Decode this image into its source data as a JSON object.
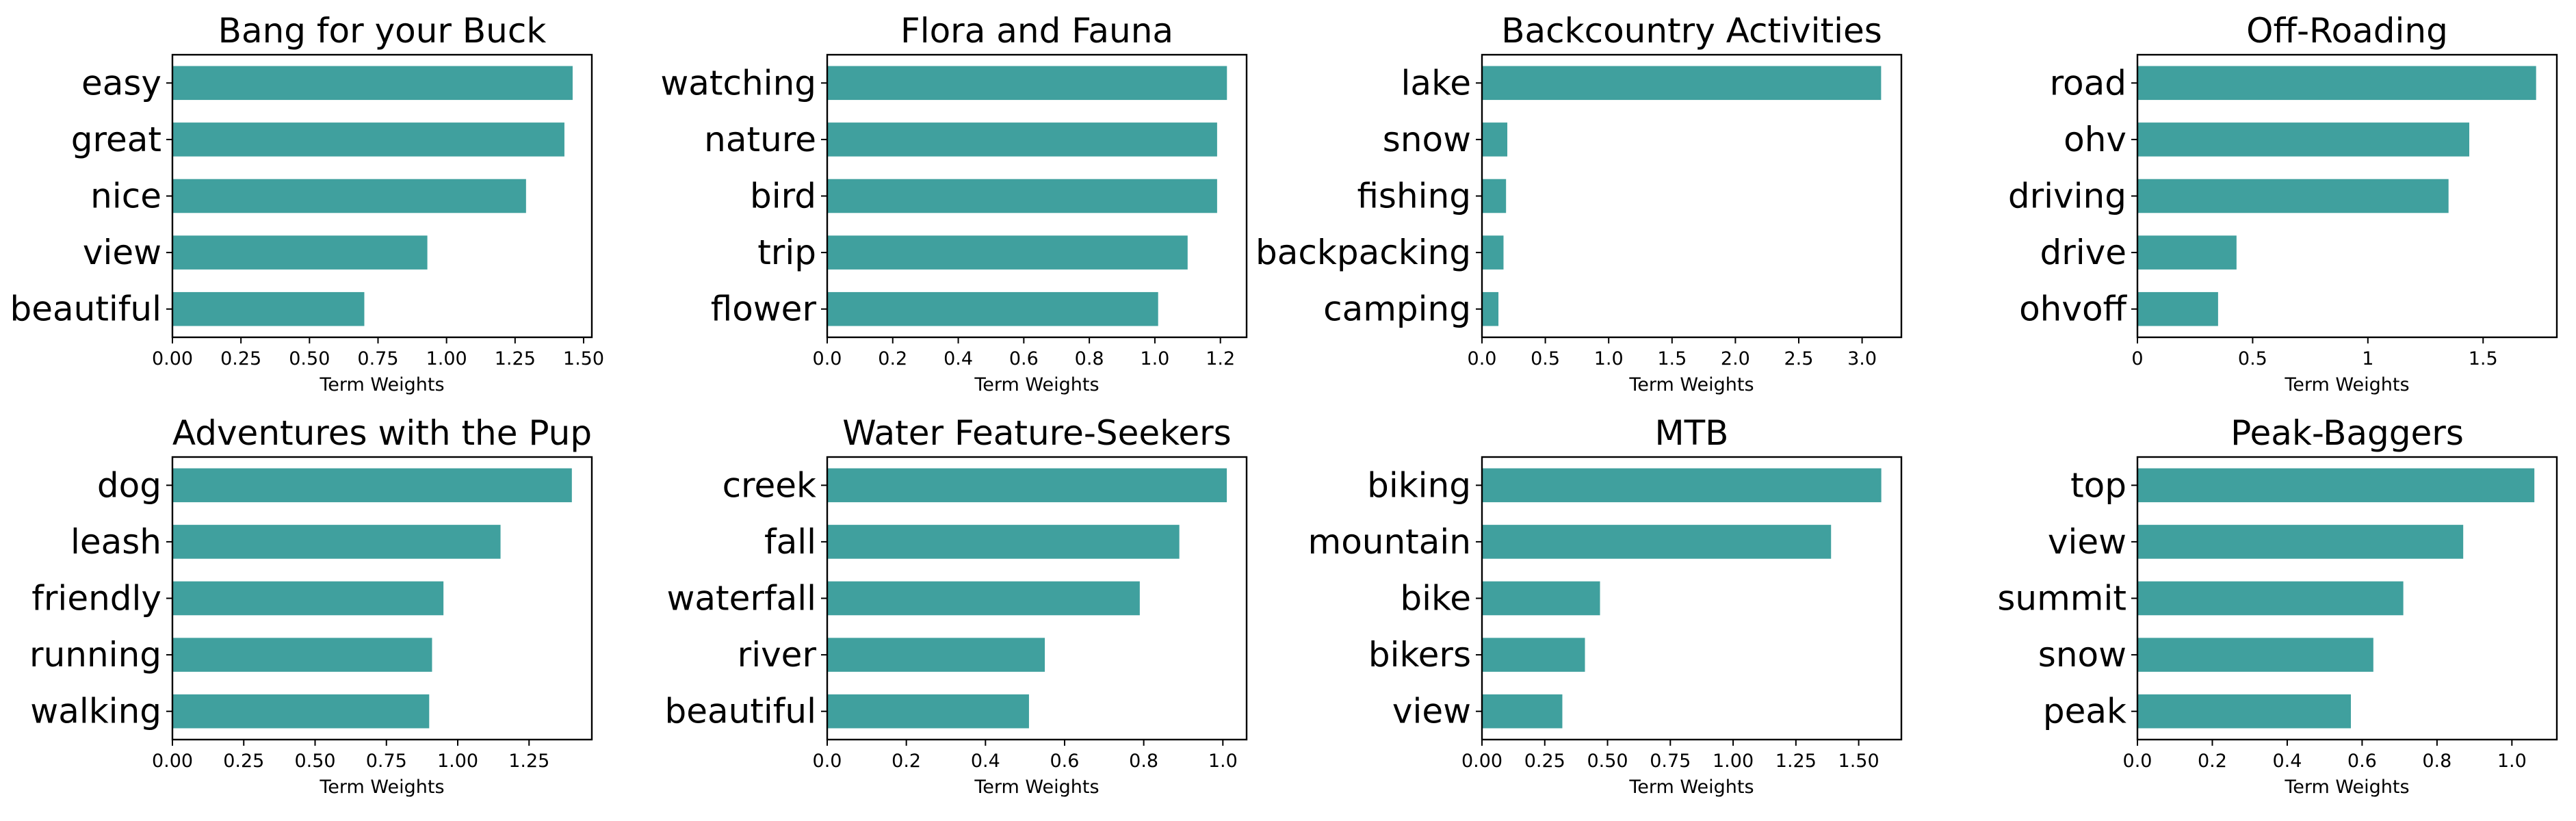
{
  "chart_data": [
    {
      "type": "bar",
      "orientation": "horizontal",
      "title": "Bang for your Buck",
      "categories": [
        "easy",
        "great",
        "nice",
        "view",
        "beautiful"
      ],
      "values": [
        1.46,
        1.43,
        1.29,
        0.93,
        0.7
      ],
      "xlabel": "Term Weights",
      "xlim": [
        0,
        1.53
      ],
      "xticks": [
        0.0,
        0.25,
        0.5,
        0.75,
        1.0,
        1.25,
        1.5
      ],
      "xtick_labels": [
        "0.00",
        "0.25",
        "0.50",
        "0.75",
        "1.00",
        "1.25",
        "1.50"
      ],
      "color": "#40a09e"
    },
    {
      "type": "bar",
      "orientation": "horizontal",
      "title": "Flora and Fauna",
      "categories": [
        "watching",
        "nature",
        "bird",
        "trip",
        "flower"
      ],
      "values": [
        1.22,
        1.19,
        1.19,
        1.1,
        1.01
      ],
      "xlabel": "Term Weights",
      "xlim": [
        0,
        1.28
      ],
      "xticks": [
        0.0,
        0.2,
        0.4,
        0.6,
        0.8,
        1.0,
        1.2
      ],
      "xtick_labels": [
        "0.0",
        "0.2",
        "0.4",
        "0.6",
        "0.8",
        "1.0",
        "1.2"
      ],
      "color": "#40a09e"
    },
    {
      "type": "bar",
      "orientation": "horizontal",
      "title": "Backcountry Activities",
      "categories": [
        "lake",
        "snow",
        "fishing",
        "backpacking",
        "camping"
      ],
      "values": [
        3.15,
        0.2,
        0.19,
        0.17,
        0.13
      ],
      "xlabel": "Term Weights",
      "xlim": [
        0,
        3.31
      ],
      "xticks": [
        0.0,
        0.5,
        1.0,
        1.5,
        2.0,
        2.5,
        3.0
      ],
      "xtick_labels": [
        "0.0",
        "0.5",
        "1.0",
        "1.5",
        "2.0",
        "2.5",
        "3.0"
      ],
      "color": "#40a09e"
    },
    {
      "type": "bar",
      "orientation": "horizontal",
      "title": "Off-Roading",
      "categories": [
        "road",
        "ohv",
        "driving",
        "drive",
        "ohvoff"
      ],
      "values": [
        1.73,
        1.44,
        1.35,
        0.43,
        0.35
      ],
      "xlabel": "Term Weights",
      "xlim": [
        0,
        1.82
      ],
      "xticks": [
        0.0,
        0.5,
        1.0,
        1.5
      ],
      "xtick_labels": [
        "0",
        "0.5",
        "1",
        "1.5"
      ],
      "color": "#40a09e"
    },
    {
      "type": "bar",
      "orientation": "horizontal",
      "title": "Adventures with the Pup",
      "categories": [
        "dog",
        "leash",
        "friendly",
        "running",
        "walking"
      ],
      "values": [
        1.4,
        1.15,
        0.95,
        0.91,
        0.9
      ],
      "xlabel": "Term Weights",
      "xlim": [
        0,
        1.47
      ],
      "xticks": [
        0.0,
        0.25,
        0.5,
        0.75,
        1.0,
        1.25
      ],
      "xtick_labels": [
        "0.00",
        "0.25",
        "0.50",
        "0.75",
        "1.00",
        "1.25"
      ],
      "color": "#40a09e"
    },
    {
      "type": "bar",
      "orientation": "horizontal",
      "title": "Water Feature-Seekers",
      "categories": [
        "creek",
        "fall",
        "waterfall",
        "river",
        "beautiful"
      ],
      "values": [
        1.01,
        0.89,
        0.79,
        0.55,
        0.51
      ],
      "xlabel": "Term Weights",
      "xlim": [
        0,
        1.06
      ],
      "xticks": [
        0.0,
        0.2,
        0.4,
        0.6,
        0.8,
        1.0
      ],
      "xtick_labels": [
        "0.0",
        "0.2",
        "0.4",
        "0.6",
        "0.8",
        "1.0"
      ],
      "color": "#40a09e"
    },
    {
      "type": "bar",
      "orientation": "horizontal",
      "title": "MTB",
      "categories": [
        "biking",
        "mountain",
        "bike",
        "bikers",
        "view"
      ],
      "values": [
        1.59,
        1.39,
        0.47,
        0.41,
        0.32
      ],
      "xlabel": "Term Weights",
      "xlim": [
        0,
        1.67
      ],
      "xticks": [
        0.0,
        0.25,
        0.5,
        0.75,
        1.0,
        1.25,
        1.5
      ],
      "xtick_labels": [
        "0.00",
        "0.25",
        "0.50",
        "0.75",
        "1.00",
        "1.25",
        "1.50"
      ],
      "color": "#40a09e"
    },
    {
      "type": "bar",
      "orientation": "horizontal",
      "title": "Peak-Baggers",
      "categories": [
        "top",
        "view",
        "summit",
        "snow",
        "peak"
      ],
      "values": [
        1.06,
        0.87,
        0.71,
        0.63,
        0.57
      ],
      "xlabel": "Term Weights",
      "xlim": [
        0,
        1.12
      ],
      "xticks": [
        0.0,
        0.2,
        0.4,
        0.6,
        0.8,
        1.0
      ],
      "xtick_labels": [
        "0.0",
        "0.2",
        "0.4",
        "0.6",
        "0.8",
        "1.0"
      ],
      "color": "#40a09e"
    }
  ]
}
